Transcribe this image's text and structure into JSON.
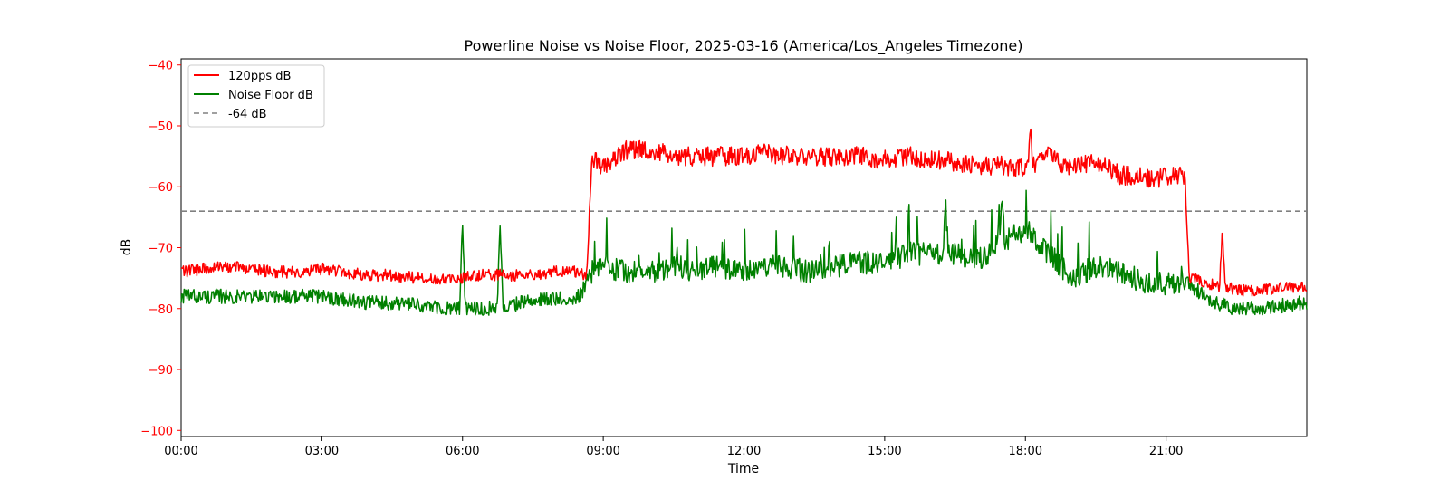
{
  "chart_data": {
    "type": "line",
    "title": "Powerline Noise vs Noise Floor, 2025-03-16 (America/Los_Angeles Timezone)",
    "xlabel": "Time",
    "ylabel": "dB",
    "xlim_hours": [
      0,
      24
    ],
    "ylim": [
      -101,
      -39
    ],
    "x_ticks": [
      "00:00",
      "03:00",
      "06:00",
      "09:00",
      "12:00",
      "15:00",
      "18:00",
      "21:00"
    ],
    "y_ticks": [
      -40,
      -50,
      -60,
      -70,
      -80,
      -90,
      -100
    ],
    "grid": false,
    "legend_position": "top-left",
    "colors": {
      "noise": "#ff0000",
      "floor": "#008000",
      "threshold": "#808080",
      "ylabel": "#ff0000"
    },
    "series": [
      {
        "name": "120pps dB",
        "color": "#ff0000",
        "x_hours": [
          0,
          0.5,
          1,
          1.5,
          2,
          2.5,
          3,
          3.5,
          4,
          4.5,
          5,
          5.5,
          6,
          6.5,
          7,
          7.5,
          8,
          8.5,
          8.65,
          8.75,
          9,
          9.5,
          10,
          10.5,
          11,
          11.5,
          12,
          12.5,
          13,
          13.5,
          14,
          14.5,
          15,
          15.5,
          16,
          16.5,
          17,
          17.5,
          18,
          18.5,
          19,
          19.5,
          20,
          20.5,
          21,
          21.4,
          21.5,
          22,
          22.5,
          23,
          23.5,
          24
        ],
        "values": [
          -74,
          -73.5,
          -73,
          -73.5,
          -74,
          -74,
          -73.5,
          -74,
          -74.5,
          -74.5,
          -75,
          -75,
          -75,
          -74.5,
          -74.5,
          -74.5,
          -74,
          -74,
          -75,
          -55,
          -57,
          -54,
          -54,
          -55,
          -55,
          -55,
          -55,
          -54.5,
          -55,
          -55,
          -55,
          -55,
          -55.5,
          -55,
          -55.5,
          -56,
          -56.5,
          -56.5,
          -57,
          -55,
          -57,
          -56,
          -58,
          -58.5,
          -58.5,
          -58,
          -75,
          -76,
          -77,
          -77,
          -76.5,
          -76.5
        ]
      },
      {
        "name": "Noise Floor dB",
        "color": "#008000",
        "x_hours": [
          0,
          0.5,
          1,
          1.5,
          2,
          2.5,
          3,
          3.5,
          4,
          4.5,
          5,
          5.5,
          6,
          6.5,
          7,
          7.5,
          8,
          8.5,
          8.75,
          9,
          9.5,
          10,
          10.5,
          11,
          11.5,
          12,
          12.5,
          13,
          13.5,
          14,
          14.5,
          15,
          15.5,
          16,
          16.5,
          17,
          17.5,
          18,
          18.5,
          19,
          19.5,
          20,
          20.5,
          21,
          21.4,
          21.5,
          22,
          22.5,
          23,
          23.5,
          24
        ],
        "values": [
          -78,
          -78,
          -78,
          -78,
          -78,
          -78,
          -78,
          -78.5,
          -79,
          -79,
          -79.5,
          -80,
          -80,
          -80,
          -79.5,
          -78.5,
          -78.5,
          -78,
          -74,
          -73,
          -74,
          -74,
          -73,
          -74,
          -73,
          -74,
          -73,
          -73.5,
          -74,
          -73,
          -72.5,
          -72.5,
          -71,
          -71,
          -71,
          -72,
          -69,
          -67,
          -71,
          -75,
          -73,
          -74,
          -75.5,
          -76,
          -76,
          -76,
          -79,
          -80,
          -80,
          -79.5,
          -79
        ]
      },
      {
        "name": "-64 dB",
        "color": "#808080",
        "style": "dashed",
        "value": -64
      }
    ],
    "annotations": [
      {
        "series": "Noise Floor dB",
        "x_hours": 6.0,
        "value": -66
      },
      {
        "series": "Noise Floor dB",
        "x_hours": 6.8,
        "value": -66
      },
      {
        "series": "Noise Floor dB",
        "x_hours": 16.3,
        "value": -63
      },
      {
        "series": "Noise Floor dB",
        "x_hours": 17.5,
        "value": -63
      },
      {
        "series": "120pps dB",
        "x_hours": 18.1,
        "value": -51
      },
      {
        "series": "120pps dB",
        "x_hours": 22.2,
        "value": -67
      }
    ]
  }
}
